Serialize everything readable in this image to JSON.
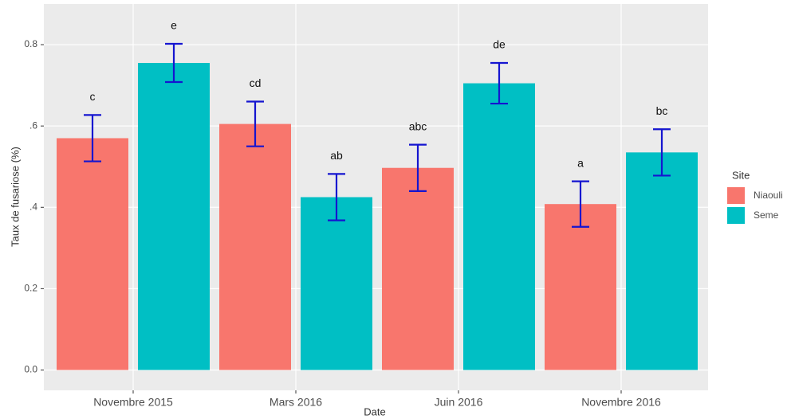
{
  "chart_data": {
    "type": "bar",
    "x_label": "Date",
    "y_label": "Taux de fusariose (%)",
    "categories": [
      "Novembre 2015",
      "Mars 2016",
      "Juin 2016",
      "Novembre 2016"
    ],
    "series": [
      {
        "name": "Niaouli",
        "color": "#F8766D",
        "values": [
          0.57,
          0.605,
          0.497,
          0.408
        ],
        "errors": [
          0.057,
          0.055,
          0.057,
          0.056
        ],
        "letters": [
          "c",
          "cd",
          "abc",
          "a"
        ]
      },
      {
        "name": "Seme",
        "color": "#00BFC4",
        "values": [
          0.755,
          0.425,
          0.705,
          0.535
        ],
        "errors": [
          0.047,
          0.057,
          0.05,
          0.057
        ],
        "letters": [
          "e",
          "ab",
          "de",
          "bc"
        ]
      }
    ],
    "error_color": "#1515d0",
    "ylim": [
      -0.05,
      0.9
    ],
    "yticks": [
      {
        "value": 0,
        "label": "0.0"
      },
      0.2,
      {
        "value": 0.4,
        "label": ".4"
      },
      {
        "value": 0.6,
        "label": ".6"
      },
      0.8
    ],
    "grid": true,
    "legend_title": "Site",
    "legend": "right"
  }
}
